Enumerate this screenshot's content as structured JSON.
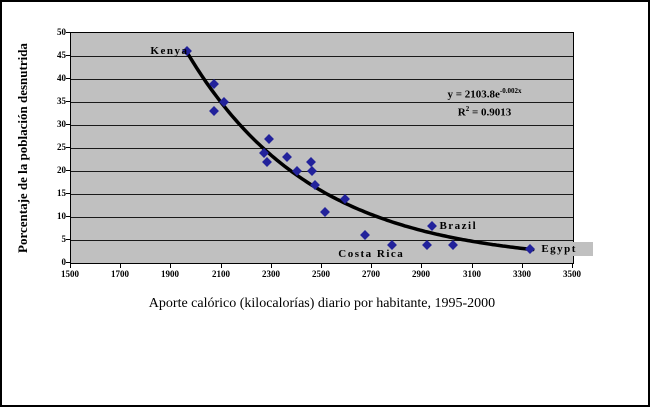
{
  "chart_data": {
    "type": "scatter",
    "title": "",
    "xlabel": "Aporte calórico (kilocalorías) diario por habitante, 1995-2000",
    "ylabel": "Porcentaje de la población desnutrida",
    "xlim": [
      1500,
      3500
    ],
    "ylim": [
      0,
      50
    ],
    "x_ticks": [
      1500,
      1700,
      1900,
      2100,
      2300,
      2500,
      2700,
      2900,
      3100,
      3300,
      3500
    ],
    "y_ticks": [
      0,
      5,
      10,
      15,
      20,
      25,
      30,
      35,
      40,
      45,
      50
    ],
    "grid": "horizontal",
    "legend": "none",
    "plot_bg_color": "#c0c0c0",
    "marker_shape": "diamond",
    "marker_color": "#22229b",
    "trendline": {
      "type": "exponential",
      "color": "#000000",
      "b": -0.002,
      "anchor_x": 1960,
      "anchor_y": 46,
      "x_end": 3340
    },
    "equation_line1_base": "y = 2103.8e",
    "equation_line1_exp": "-0.002x",
    "equation_line2_base": "R",
    "equation_line2_sup": "2",
    "equation_line2_rest": " = 0.9013",
    "points": [
      {
        "x": 1960,
        "y": 46,
        "label": "Kenya",
        "label_pos": "left"
      },
      {
        "x": 2070,
        "y": 39
      },
      {
        "x": 2110,
        "y": 35
      },
      {
        "x": 2070,
        "y": 33
      },
      {
        "x": 2290,
        "y": 27
      },
      {
        "x": 2270,
        "y": 24
      },
      {
        "x": 2280,
        "y": 22
      },
      {
        "x": 2360,
        "y": 23
      },
      {
        "x": 2400,
        "y": 20
      },
      {
        "x": 2455,
        "y": 22
      },
      {
        "x": 2460,
        "y": 20
      },
      {
        "x": 2470,
        "y": 17
      },
      {
        "x": 2510,
        "y": 11
      },
      {
        "x": 2590,
        "y": 14
      },
      {
        "x": 2670,
        "y": 6
      },
      {
        "x": 2780,
        "y": 4,
        "label": "Costa Rica",
        "label_pos": "below-left"
      },
      {
        "x": 2920,
        "y": 4
      },
      {
        "x": 2940,
        "y": 8,
        "label": "Brazil",
        "label_pos": "right"
      },
      {
        "x": 3020,
        "y": 4
      },
      {
        "x": 3330,
        "y": 3,
        "label": "Egypt",
        "label_pos": "right-boxed"
      }
    ]
  }
}
